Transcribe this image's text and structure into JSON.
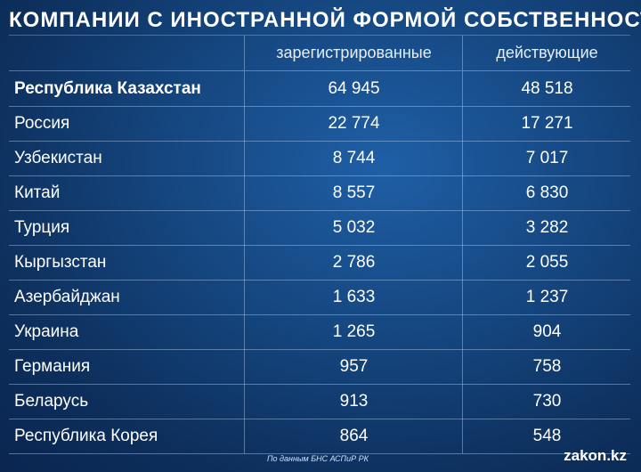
{
  "title": "КОМПАНИИ С ИНОСТРАННОЙ ФОРМОЙ СОБСТВЕННОСТИ",
  "table": {
    "headers": [
      "",
      "зарегистрированные",
      "действующие"
    ],
    "rows": [
      {
        "country": "Республика Казахстан",
        "registered": "64 945",
        "active": "48 518"
      },
      {
        "country": "Россия",
        "registered": "22 774",
        "active": "17 271"
      },
      {
        "country": "Узбекистан",
        "registered": "8 744",
        "active": "7 017"
      },
      {
        "country": "Китай",
        "registered": "8 557",
        "active": "6 830"
      },
      {
        "country": "Турция",
        "registered": "5 032",
        "active": "3 282"
      },
      {
        "country": "Кыргызстан",
        "registered": "2 786",
        "active": "2 055"
      },
      {
        "country": "Азербайджан",
        "registered": "1 633",
        "active": "1 237"
      },
      {
        "country": "Украина",
        "registered": "1 265",
        "active": "904"
      },
      {
        "country": "Германия",
        "registered": "957",
        "active": "758"
      },
      {
        "country": "Беларусь",
        "registered": "913",
        "active": "730"
      },
      {
        "country": "Республика Корея",
        "registered": "864",
        "active": "548"
      }
    ]
  },
  "source": "По данным БНС АСПиР РК",
  "logo": "zakon.kz"
}
